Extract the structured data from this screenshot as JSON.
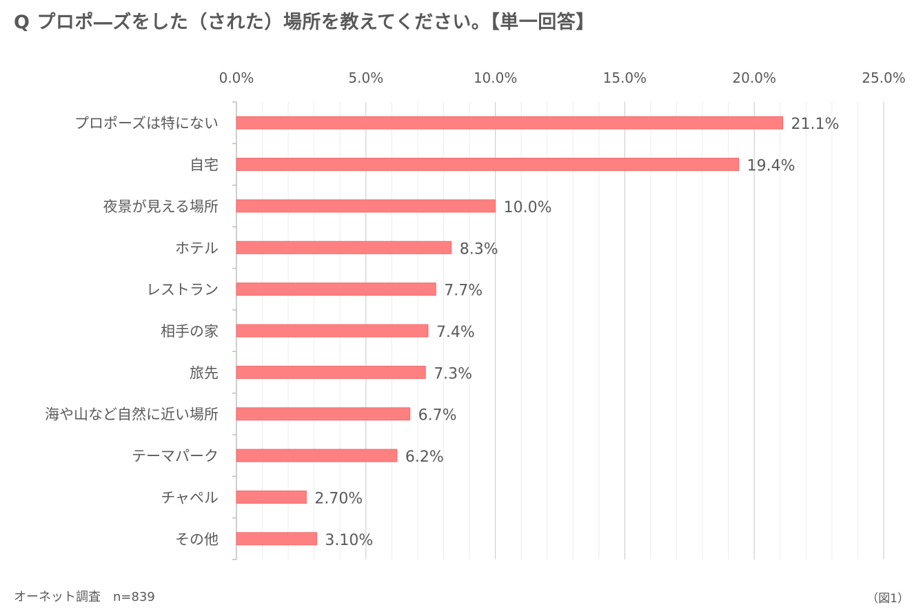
{
  "title": "Q プロポ―ズをした（された）場所を教えてください。【単一回答】",
  "source_note": "オーネット調査　n=839",
  "figure_label": "（図1）",
  "colors": {
    "bar": "#ff8080",
    "bar_edge": "#f06b6b",
    "grid_major": "#d0d0d0",
    "grid_minor": "#ececec",
    "axis": "#bfbfbf",
    "text": "#595959"
  },
  "chart_data": {
    "type": "bar",
    "orientation": "horizontal",
    "title": "Q プロポ―ズをした（された）場所を教えてください。【単一回答】",
    "xlabel": "",
    "ylabel": "",
    "xlim": [
      0,
      25
    ],
    "x_axis_position": "top",
    "grid": true,
    "ticks": [
      "0.0%",
      "5.0%",
      "10.0%",
      "15.0%",
      "20.0%",
      "25.0%"
    ],
    "tick_values": [
      0,
      5,
      10,
      15,
      20,
      25
    ],
    "categories": [
      "プロポーズは特にない",
      "自宅",
      "夜景が見える場所",
      "ホテル",
      "レストラン",
      "相手の家",
      "旅先",
      "海や山など自然に近い場所",
      "テーマパーク",
      "チャペル",
      "その他"
    ],
    "values": [
      21.1,
      19.4,
      10.0,
      8.3,
      7.7,
      7.4,
      7.3,
      6.7,
      6.2,
      2.7,
      3.1
    ],
    "data_labels": [
      "21.1%",
      "19.4%",
      "10.0%",
      "8.3%",
      "7.7%",
      "7.4%",
      "7.3%",
      "6.7%",
      "6.2%",
      "2.70%",
      "3.10%"
    ]
  }
}
